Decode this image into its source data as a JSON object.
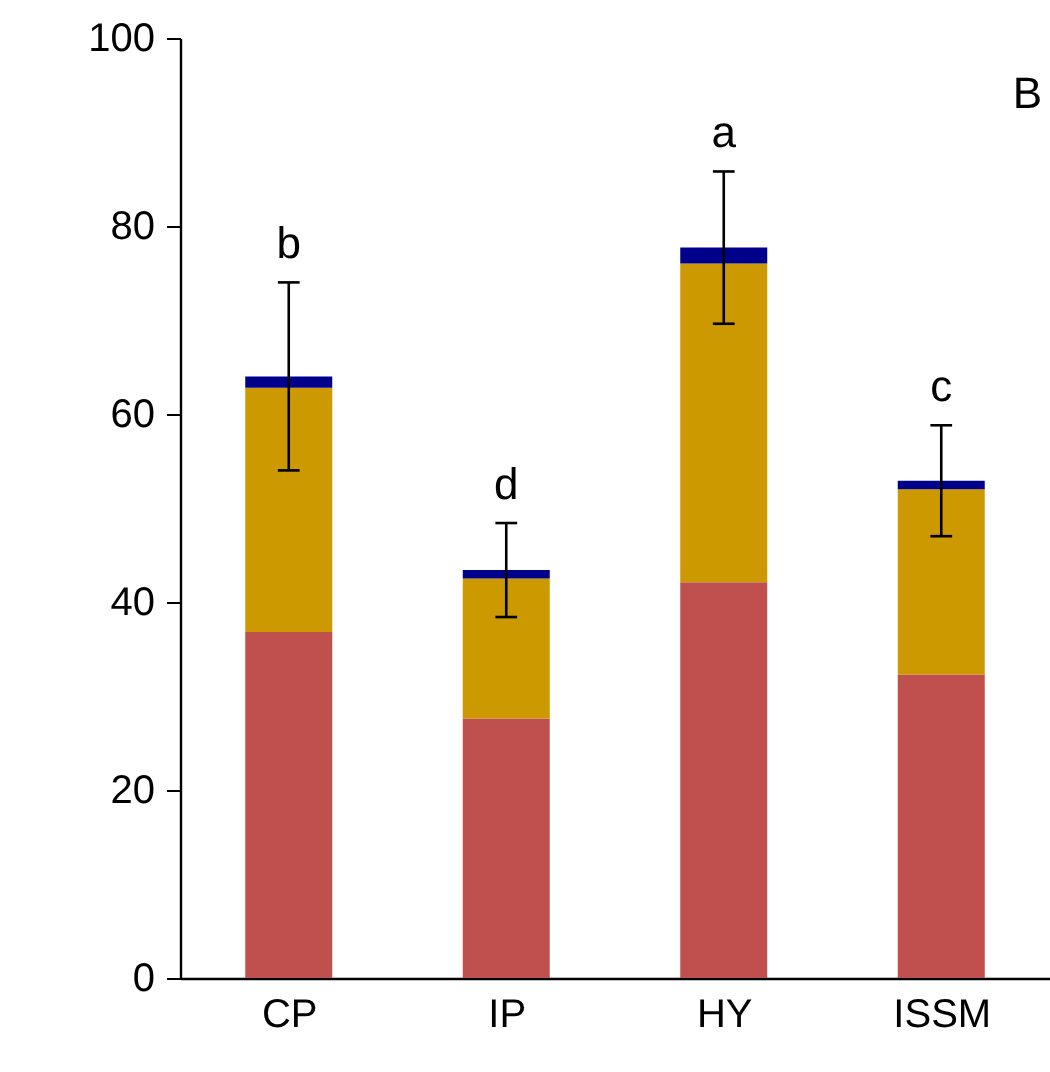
{
  "chart_data": {
    "type": "bar",
    "stacked": true,
    "categories": [
      "CP",
      "IP",
      "HY",
      "ISSM"
    ],
    "series": [
      {
        "color": "#c0504d",
        "values": [
          36.8,
          27.6,
          42.1,
          32.3
        ]
      },
      {
        "color": "#cc9900",
        "values": [
          26.0,
          14.9,
          33.9,
          19.7
        ]
      },
      {
        "color": "#00008b",
        "values": [
          1.2,
          0.9,
          1.7,
          0.9
        ],
        "errors": [
          10,
          5,
          8.1,
          5.9
        ]
      }
    ],
    "ylim": [
      0,
      100
    ],
    "yticks": [
      0,
      20,
      40,
      60,
      80,
      100
    ],
    "grid": false,
    "annotations": [
      "b",
      "d",
      "a",
      "c",
      "B"
    ]
  }
}
